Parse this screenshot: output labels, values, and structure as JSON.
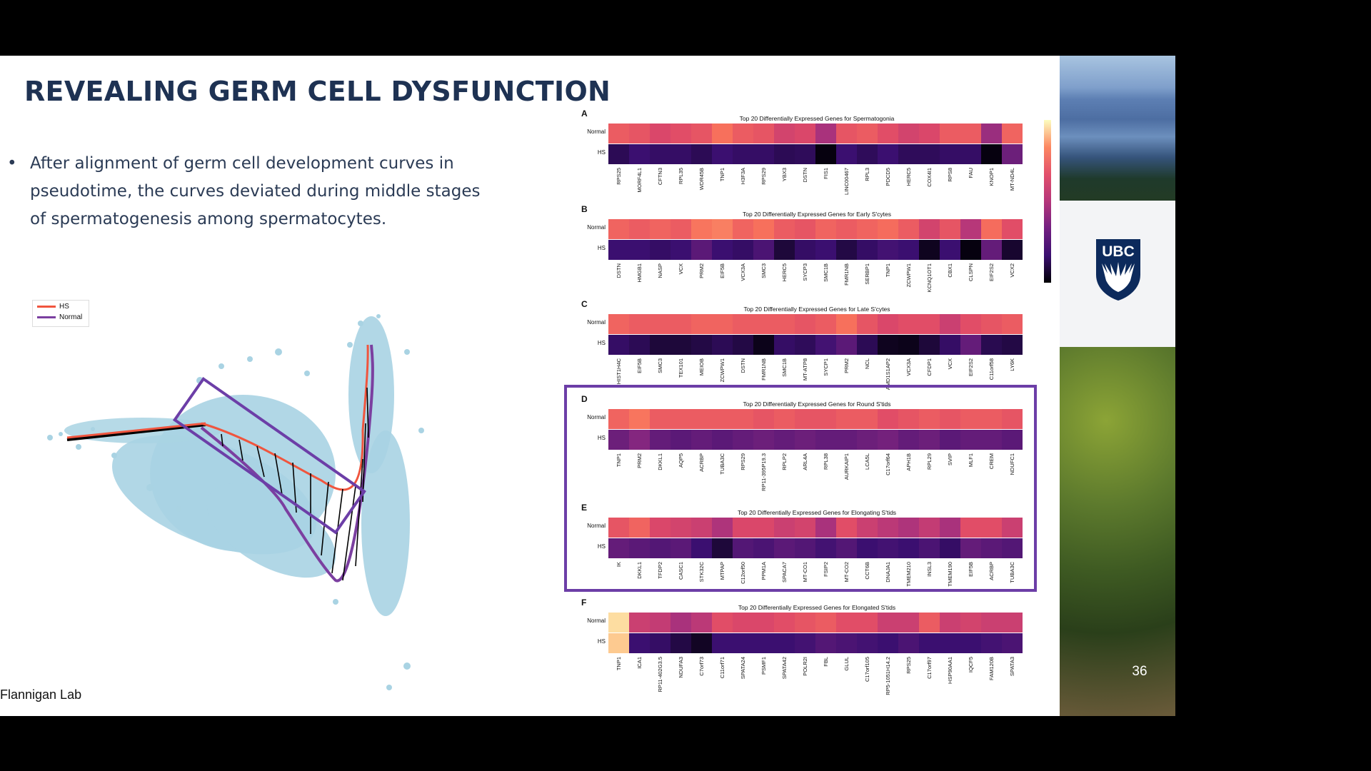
{
  "slide": {
    "title": "REVEALING GERM CELL DYSFUNCTION",
    "bullet_marker": "•",
    "bullet_text": "After alignment of germ cell development curves in pseudotime, the curves deviated during middle stages of spermatogenesis among spermatocytes.",
    "footer": "Flannigan Lab",
    "page_number": "36",
    "logo_text": "UBC"
  },
  "legend": {
    "items": [
      {
        "label": "HS",
        "color": "#f0553e"
      },
      {
        "label": "Normal",
        "color": "#7b3fa0"
      }
    ]
  },
  "heatmaps": [
    {
      "letter": "A",
      "title": "Top 20 Differentially Expressed Genes for Spermatogonia",
      "rows": [
        "Normal",
        "HS"
      ],
      "genes": [
        "RPS25",
        "MORF4L1",
        "CFTN3",
        "RPL35",
        "WDR45B",
        "TNP1",
        "H3F3A",
        "RPS29",
        "YBX3",
        "DSTN",
        "FIS1",
        "LINC00467",
        "RPL3",
        "PDCD5",
        "HERC5",
        "COX4I1",
        "RPS8",
        "FAU",
        "KNOP1",
        "MT-ND4L"
      ],
      "normal": [
        0.7,
        0.68,
        0.64,
        0.66,
        0.68,
        0.75,
        0.7,
        0.68,
        0.62,
        0.64,
        0.5,
        0.68,
        0.7,
        0.66,
        0.62,
        0.64,
        0.7,
        0.7,
        0.45,
        0.72
      ],
      "hs": [
        0.15,
        0.2,
        0.18,
        0.18,
        0.15,
        0.2,
        0.18,
        0.18,
        0.15,
        0.16,
        0.02,
        0.2,
        0.16,
        0.2,
        0.16,
        0.16,
        0.18,
        0.18,
        0.02,
        0.32
      ]
    },
    {
      "letter": "B",
      "title": "Top 20 Differentially Expressed Genes for Early S'cytes",
      "rows": [
        "Normal",
        "HS"
      ],
      "genes": [
        "DSTN",
        "HMGB1",
        "NASP",
        "VCX",
        "PRM2",
        "EIF5B",
        "VCX3A",
        "SMC3",
        "HERC5",
        "SYCP3",
        "SMC1B",
        "FMR1NB",
        "SERBP1",
        "TNP1",
        "ZCWPW1",
        "KCNQ1OT1",
        "CBX1",
        "CLSPN",
        "EIF2S2",
        "VCX2"
      ],
      "normal": [
        0.72,
        0.7,
        0.72,
        0.7,
        0.76,
        0.78,
        0.72,
        0.75,
        0.7,
        0.68,
        0.72,
        0.7,
        0.72,
        0.74,
        0.7,
        0.62,
        0.68,
        0.55,
        0.74,
        0.66
      ],
      "hs": [
        0.2,
        0.2,
        0.18,
        0.2,
        0.28,
        0.2,
        0.18,
        0.24,
        0.1,
        0.18,
        0.2,
        0.12,
        0.18,
        0.22,
        0.2,
        0.05,
        0.2,
        0.02,
        0.3,
        0.08
      ]
    },
    {
      "letter": "C",
      "title": "Top 20 Differentially Expressed Genes for Late S'cytes",
      "rows": [
        "Normal",
        "HS"
      ],
      "genes": [
        "HIST1H4C",
        "EIF5B",
        "SMC3",
        "TEX101",
        "MEIOB",
        "ZCWPW1",
        "DSTN",
        "FMR1NB",
        "SMC1B",
        "MT-ATP8",
        "SYCP1",
        "PRM2",
        "NCL",
        "AMD1S1AP2",
        "VCX3A",
        "CFDP1",
        "VCX",
        "EIF2S2",
        "C11orf58",
        "LY6K"
      ],
      "normal": [
        0.72,
        0.7,
        0.7,
        0.7,
        0.72,
        0.72,
        0.7,
        0.7,
        0.7,
        0.68,
        0.7,
        0.75,
        0.68,
        0.64,
        0.66,
        0.66,
        0.6,
        0.66,
        0.68,
        0.7
      ],
      "hs": [
        0.18,
        0.15,
        0.1,
        0.1,
        0.12,
        0.15,
        0.12,
        0.04,
        0.18,
        0.16,
        0.22,
        0.28,
        0.15,
        0.05,
        0.04,
        0.1,
        0.18,
        0.3,
        0.14,
        0.12
      ]
    },
    {
      "letter": "D",
      "title": "Top 20 Differentially Expressed Genes for Round S'tids",
      "rows": [
        "Normal",
        "HS"
      ],
      "genes": [
        "TNP1",
        "PRM2",
        "DKKL1",
        "AQP5",
        "ACRBP",
        "TUBA3C",
        "RPS29",
        "RP11-395P19.3",
        "RPLP2",
        "ARL4A",
        "RPL38",
        "AURKAIP1",
        "LCA5L",
        "C17orf64",
        "APH1B",
        "RPL29",
        "SVIP",
        "MLF1",
        "CREM",
        "NDUFC1"
      ],
      "normal": [
        0.72,
        0.76,
        0.7,
        0.7,
        0.7,
        0.7,
        0.7,
        0.68,
        0.7,
        0.68,
        0.68,
        0.7,
        0.7,
        0.66,
        0.68,
        0.7,
        0.68,
        0.7,
        0.7,
        0.68
      ],
      "hs": [
        0.32,
        0.38,
        0.3,
        0.28,
        0.3,
        0.28,
        0.3,
        0.32,
        0.3,
        0.32,
        0.3,
        0.3,
        0.32,
        0.34,
        0.3,
        0.32,
        0.28,
        0.3,
        0.3,
        0.28
      ]
    },
    {
      "letter": "E",
      "title": "Top 20 Differentially Expressed Genes for Elongating S'tids",
      "rows": [
        "Normal",
        "HS"
      ],
      "genes": [
        "IK",
        "DKKL1",
        "TFDP2",
        "CASC1",
        "STK32C",
        "MTPAP",
        "C12orf50",
        "PPM1A",
        "SPACA7",
        "MT-CO1",
        "FSIP2",
        "MT-CO2",
        "CCT6B",
        "DNAJA1",
        "TMEM210",
        "INSL3",
        "TMEM190",
        "EIF5B",
        "ACRBP",
        "TUBA3C"
      ],
      "normal": [
        0.68,
        0.72,
        0.64,
        0.62,
        0.6,
        0.52,
        0.64,
        0.64,
        0.6,
        0.62,
        0.5,
        0.66,
        0.6,
        0.56,
        0.52,
        0.58,
        0.5,
        0.66,
        0.66,
        0.6
      ],
      "hs": [
        0.3,
        0.28,
        0.26,
        0.28,
        0.2,
        0.1,
        0.26,
        0.24,
        0.28,
        0.26,
        0.22,
        0.26,
        0.2,
        0.22,
        0.2,
        0.24,
        0.18,
        0.3,
        0.28,
        0.26
      ]
    },
    {
      "letter": "F",
      "title": "Top 20 Differentially Expressed Genes for Elongated S'tids",
      "rows": [
        "Normal",
        "HS"
      ],
      "genes": [
        "TNP1",
        "ICA1",
        "RP11-402G3.5",
        "NDUFA3",
        "C7orf73",
        "C11orf71",
        "SPATA24",
        "PSMF1",
        "SPATA42",
        "POLR2I",
        "FBL",
        "GLUL",
        "C17orf105",
        "RP5-1051H14.2",
        "RPS25",
        "C17orf97",
        "HSP90AA1",
        "IQCF5",
        "FAM120B",
        "SPATA3"
      ],
      "normal": [
        0.95,
        0.6,
        0.58,
        0.5,
        0.56,
        0.66,
        0.64,
        0.64,
        0.66,
        0.68,
        0.7,
        0.66,
        0.66,
        0.6,
        0.6,
        0.7,
        0.6,
        0.62,
        0.6,
        0.6
      ],
      "hs": [
        0.92,
        0.2,
        0.18,
        0.12,
        0.06,
        0.2,
        0.2,
        0.2,
        0.2,
        0.22,
        0.26,
        0.24,
        0.22,
        0.2,
        0.24,
        0.2,
        0.2,
        0.2,
        0.22,
        0.24
      ]
    }
  ]
}
